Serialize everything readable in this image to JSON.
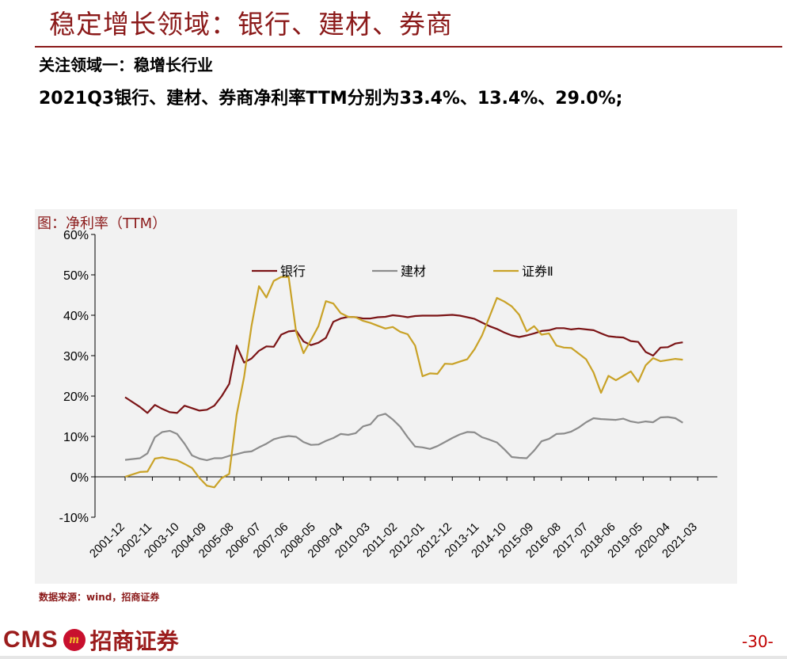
{
  "header": {
    "title": "稳定增长领域：银行、建材、券商",
    "subtitle": "关注领域一：稳增长行业",
    "highlight": "2021Q3银行、建材、券商净利率TTM分别为33.4%、13.4%、29.0%;"
  },
  "chart_caption": "图：净利率（TTM）",
  "source_note": "数据来源：wind，招商证券",
  "footer": {
    "logo_text": "CMS",
    "logo_badge": "m",
    "logo_cn": "招商证券",
    "page_number": "-30-"
  },
  "colors": {
    "brand": "#8b1a1a",
    "bank": "#7b1416",
    "building_materials": "#8c8c8c",
    "securities": "#c9a227"
  },
  "chart_data": {
    "type": "line",
    "title": "",
    "xlabel": "",
    "ylabel": "",
    "ylim": [
      -10,
      60
    ],
    "yticks": [
      "-10%",
      "0%",
      "10%",
      "20%",
      "30%",
      "40%",
      "50%",
      "60%"
    ],
    "ytick_values": [
      -10,
      0,
      10,
      20,
      30,
      40,
      50,
      60
    ],
    "x_tick_labels": [
      "2001-12",
      "2002-11",
      "2003-10",
      "2004-09",
      "2005-08",
      "2006-07",
      "2007-06",
      "2008-05",
      "2009-04",
      "2010-03",
      "2011-02",
      "2012-01",
      "2012-12",
      "2013-11",
      "2014-10",
      "2015-09",
      "2016-08",
      "2017-07",
      "2018-06",
      "2019-05",
      "2020-04",
      "2021-03"
    ],
    "x_range": [
      "2001-12",
      "2021-09"
    ],
    "grid": false,
    "legend_position": "top",
    "series": [
      {
        "name": "银行",
        "color": "#7b1416",
        "points": [
          [
            "2001-12",
            19.7
          ],
          [
            "2002-06",
            17.3
          ],
          [
            "2002-09",
            15.8
          ],
          [
            "2002-12",
            17.8
          ],
          [
            "2003-03",
            16.8
          ],
          [
            "2003-06",
            16.0
          ],
          [
            "2003-09",
            15.8
          ],
          [
            "2003-12",
            17.6
          ],
          [
            "2004-03",
            17.0
          ],
          [
            "2004-06",
            16.4
          ],
          [
            "2004-09",
            16.6
          ],
          [
            "2004-12",
            17.6
          ],
          [
            "2005-03",
            20.0
          ],
          [
            "2005-06",
            23.0
          ],
          [
            "2005-09",
            32.5
          ],
          [
            "2005-12",
            28.3
          ],
          [
            "2006-03",
            29.3
          ],
          [
            "2006-06",
            31.2
          ],
          [
            "2006-09",
            32.3
          ],
          [
            "2006-12",
            32.2
          ],
          [
            "2007-03",
            35.2
          ],
          [
            "2007-06",
            36.0
          ],
          [
            "2007-09",
            36.2
          ],
          [
            "2007-12",
            33.5
          ],
          [
            "2008-03",
            32.6
          ],
          [
            "2008-06",
            33.2
          ],
          [
            "2008-09",
            34.4
          ],
          [
            "2008-12",
            38.4
          ],
          [
            "2009-03",
            39.2
          ],
          [
            "2009-06",
            39.6
          ],
          [
            "2009-09",
            39.5
          ],
          [
            "2009-12",
            39.2
          ],
          [
            "2010-03",
            39.2
          ],
          [
            "2010-06",
            39.5
          ],
          [
            "2010-09",
            39.6
          ],
          [
            "2010-12",
            40.0
          ],
          [
            "2011-03",
            39.8
          ],
          [
            "2011-06",
            39.5
          ],
          [
            "2011-09",
            39.8
          ],
          [
            "2011-12",
            39.9
          ],
          [
            "2012-03",
            39.9
          ],
          [
            "2012-06",
            39.9
          ],
          [
            "2012-09",
            40.0
          ],
          [
            "2012-12",
            40.1
          ],
          [
            "2013-03",
            39.9
          ],
          [
            "2013-06",
            39.5
          ],
          [
            "2013-09",
            39.1
          ],
          [
            "2013-12",
            38.2
          ],
          [
            "2014-03",
            37.3
          ],
          [
            "2014-06",
            36.6
          ],
          [
            "2014-09",
            35.7
          ],
          [
            "2014-12",
            35.0
          ],
          [
            "2015-03",
            34.6
          ],
          [
            "2015-06",
            35.0
          ],
          [
            "2015-09",
            35.5
          ],
          [
            "2015-12",
            36.1
          ],
          [
            "2016-03",
            36.3
          ],
          [
            "2016-06",
            36.8
          ],
          [
            "2016-09",
            36.8
          ],
          [
            "2016-12",
            36.5
          ],
          [
            "2017-03",
            36.7
          ],
          [
            "2017-06",
            36.5
          ],
          [
            "2017-09",
            36.3
          ],
          [
            "2017-12",
            35.5
          ],
          [
            "2018-03",
            34.8
          ],
          [
            "2018-06",
            34.6
          ],
          [
            "2018-09",
            34.5
          ],
          [
            "2018-12",
            33.6
          ],
          [
            "2019-03",
            33.4
          ],
          [
            "2019-06",
            30.9
          ],
          [
            "2019-09",
            30.0
          ],
          [
            "2019-12",
            32.0
          ],
          [
            "2020-03",
            32.1
          ],
          [
            "2020-06",
            33.0
          ],
          [
            "2020-09",
            33.3
          ]
        ]
      },
      {
        "name": "建材",
        "color": "#8c8c8c",
        "points": [
          [
            "2001-12",
            4.2
          ],
          [
            "2002-06",
            4.6
          ],
          [
            "2002-09",
            5.8
          ],
          [
            "2002-12",
            9.8
          ],
          [
            "2003-03",
            11.1
          ],
          [
            "2003-06",
            11.4
          ],
          [
            "2003-09",
            10.6
          ],
          [
            "2003-12",
            8.2
          ],
          [
            "2004-03",
            5.3
          ],
          [
            "2004-06",
            4.5
          ],
          [
            "2004-09",
            4.1
          ],
          [
            "2004-12",
            4.6
          ],
          [
            "2005-03",
            4.6
          ],
          [
            "2005-06",
            5.2
          ],
          [
            "2005-09",
            5.6
          ],
          [
            "2005-12",
            6.1
          ],
          [
            "2006-03",
            6.3
          ],
          [
            "2006-06",
            7.3
          ],
          [
            "2006-09",
            8.2
          ],
          [
            "2006-12",
            9.3
          ],
          [
            "2007-03",
            9.8
          ],
          [
            "2007-06",
            10.1
          ],
          [
            "2007-09",
            9.9
          ],
          [
            "2007-12",
            8.6
          ],
          [
            "2008-03",
            7.9
          ],
          [
            "2008-06",
            8.0
          ],
          [
            "2008-09",
            8.9
          ],
          [
            "2008-12",
            9.6
          ],
          [
            "2009-03",
            10.6
          ],
          [
            "2009-06",
            10.4
          ],
          [
            "2009-09",
            10.8
          ],
          [
            "2009-12",
            12.5
          ],
          [
            "2010-03",
            13.0
          ],
          [
            "2010-06",
            15.1
          ],
          [
            "2010-09",
            15.6
          ],
          [
            "2010-12",
            14.2
          ],
          [
            "2011-03",
            12.4
          ],
          [
            "2011-06",
            9.8
          ],
          [
            "2011-09",
            7.5
          ],
          [
            "2011-12",
            7.3
          ],
          [
            "2012-03",
            6.9
          ],
          [
            "2012-06",
            7.6
          ],
          [
            "2012-09",
            8.6
          ],
          [
            "2012-12",
            9.6
          ],
          [
            "2013-03",
            10.5
          ],
          [
            "2013-06",
            11.1
          ],
          [
            "2013-09",
            11.0
          ],
          [
            "2013-12",
            9.8
          ],
          [
            "2014-03",
            9.2
          ],
          [
            "2014-06",
            8.5
          ],
          [
            "2014-09",
            6.8
          ],
          [
            "2014-12",
            4.9
          ],
          [
            "2015-03",
            4.7
          ],
          [
            "2015-06",
            4.6
          ],
          [
            "2015-09",
            6.5
          ],
          [
            "2015-12",
            8.8
          ],
          [
            "2016-03",
            9.4
          ],
          [
            "2016-06",
            10.6
          ],
          [
            "2016-09",
            10.7
          ],
          [
            "2016-12",
            11.2
          ],
          [
            "2017-03",
            12.2
          ],
          [
            "2017-06",
            13.5
          ],
          [
            "2017-09",
            14.5
          ],
          [
            "2017-12",
            14.3
          ],
          [
            "2018-03",
            14.2
          ],
          [
            "2018-06",
            14.1
          ],
          [
            "2018-09",
            14.4
          ],
          [
            "2018-12",
            13.7
          ],
          [
            "2019-03",
            13.4
          ],
          [
            "2019-06",
            13.7
          ],
          [
            "2019-09",
            13.5
          ],
          [
            "2019-12",
            14.7
          ],
          [
            "2020-03",
            14.8
          ],
          [
            "2020-06",
            14.5
          ],
          [
            "2020-09",
            13.4
          ]
        ]
      },
      {
        "name": "证券Ⅱ",
        "color": "#c9a227",
        "points": [
          [
            "2001-12",
            0.0
          ],
          [
            "2002-06",
            1.2
          ],
          [
            "2002-09",
            1.3
          ],
          [
            "2002-12",
            4.5
          ],
          [
            "2003-03",
            4.8
          ],
          [
            "2003-06",
            4.4
          ],
          [
            "2003-09",
            4.1
          ],
          [
            "2003-12",
            3.2
          ],
          [
            "2004-03",
            2.2
          ],
          [
            "2004-06",
            -0.3
          ],
          [
            "2004-09",
            -2.2
          ],
          [
            "2004-12",
            -2.6
          ],
          [
            "2005-03",
            -0.3
          ],
          [
            "2005-06",
            0.7
          ],
          [
            "2005-09",
            15.4
          ],
          [
            "2005-12",
            24.7
          ],
          [
            "2006-03",
            37.4
          ],
          [
            "2006-06",
            47.2
          ],
          [
            "2006-09",
            44.4
          ],
          [
            "2006-12",
            48.5
          ],
          [
            "2007-03",
            49.5
          ],
          [
            "2007-06",
            49.5
          ],
          [
            "2007-09",
            35.9
          ],
          [
            "2007-12",
            30.6
          ],
          [
            "2008-03",
            33.9
          ],
          [
            "2008-06",
            37.3
          ],
          [
            "2008-09",
            43.5
          ],
          [
            "2008-12",
            42.9
          ],
          [
            "2009-03",
            40.5
          ],
          [
            "2009-06",
            39.6
          ],
          [
            "2009-09",
            39.5
          ],
          [
            "2009-12",
            38.6
          ],
          [
            "2010-03",
            38.1
          ],
          [
            "2010-06",
            37.4
          ],
          [
            "2010-09",
            36.7
          ],
          [
            "2010-12",
            37.1
          ],
          [
            "2011-03",
            35.9
          ],
          [
            "2011-06",
            35.3
          ],
          [
            "2011-09",
            32.5
          ],
          [
            "2011-12",
            24.9
          ],
          [
            "2012-03",
            25.6
          ],
          [
            "2012-06",
            25.5
          ],
          [
            "2012-09",
            28.0
          ],
          [
            "2012-12",
            27.9
          ],
          [
            "2013-03",
            28.5
          ],
          [
            "2013-06",
            29.1
          ],
          [
            "2013-09",
            31.6
          ],
          [
            "2013-12",
            35.0
          ],
          [
            "2014-03",
            39.6
          ],
          [
            "2014-06",
            44.3
          ],
          [
            "2014-09",
            43.4
          ],
          [
            "2014-12",
            42.2
          ],
          [
            "2015-03",
            40.1
          ],
          [
            "2015-06",
            36.0
          ],
          [
            "2015-09",
            37.3
          ],
          [
            "2015-12",
            35.2
          ],
          [
            "2016-03",
            35.5
          ],
          [
            "2016-06",
            32.5
          ],
          [
            "2016-09",
            32.0
          ],
          [
            "2016-12",
            31.9
          ],
          [
            "2017-03",
            30.5
          ],
          [
            "2017-06",
            29.1
          ],
          [
            "2017-09",
            25.8
          ],
          [
            "2017-12",
            20.8
          ],
          [
            "2018-03",
            25.0
          ],
          [
            "2018-06",
            23.9
          ],
          [
            "2018-09",
            25.0
          ],
          [
            "2018-12",
            26.1
          ],
          [
            "2019-03",
            23.5
          ],
          [
            "2019-06",
            27.6
          ],
          [
            "2019-09",
            29.4
          ],
          [
            "2019-12",
            28.6
          ],
          [
            "2020-03",
            28.9
          ],
          [
            "2020-06",
            29.2
          ],
          [
            "2020-09",
            29.0
          ]
        ]
      }
    ]
  }
}
